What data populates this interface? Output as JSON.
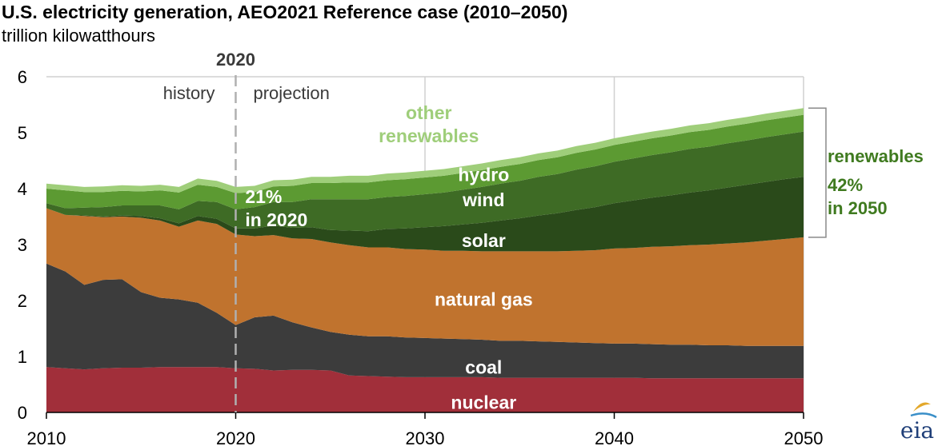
{
  "title": "U.S. electricity generation, AEO2021 Reference case (2010–2050)",
  "subtitle": "trillion kilowatthours",
  "chart_data": {
    "type": "area",
    "stacked": true,
    "x": [
      2010,
      2011,
      2012,
      2013,
      2014,
      2015,
      2016,
      2017,
      2018,
      2019,
      2020,
      2021,
      2022,
      2023,
      2024,
      2025,
      2026,
      2027,
      2028,
      2029,
      2030,
      2031,
      2032,
      2033,
      2034,
      2035,
      2036,
      2037,
      2038,
      2039,
      2040,
      2041,
      2042,
      2043,
      2044,
      2045,
      2046,
      2047,
      2048,
      2049,
      2050
    ],
    "series": [
      {
        "name": "nuclear",
        "color": "#a12f3a",
        "values": [
          0.81,
          0.79,
          0.77,
          0.79,
          0.8,
          0.8,
          0.81,
          0.81,
          0.81,
          0.81,
          0.79,
          0.78,
          0.75,
          0.76,
          0.76,
          0.75,
          0.66,
          0.65,
          0.64,
          0.63,
          0.63,
          0.63,
          0.63,
          0.63,
          0.62,
          0.62,
          0.62,
          0.62,
          0.62,
          0.62,
          0.62,
          0.62,
          0.61,
          0.61,
          0.61,
          0.61,
          0.61,
          0.61,
          0.61,
          0.61,
          0.61
        ]
      },
      {
        "name": "coal",
        "color": "#3c3c3c",
        "values": [
          1.85,
          1.73,
          1.51,
          1.58,
          1.58,
          1.35,
          1.24,
          1.21,
          1.15,
          0.97,
          0.77,
          0.92,
          0.98,
          0.85,
          0.76,
          0.69,
          0.73,
          0.71,
          0.72,
          0.71,
          0.7,
          0.69,
          0.68,
          0.67,
          0.66,
          0.66,
          0.65,
          0.64,
          0.63,
          0.62,
          0.61,
          0.61,
          0.61,
          0.6,
          0.6,
          0.59,
          0.59,
          0.58,
          0.58,
          0.58,
          0.58
        ]
      },
      {
        "name": "natural gas",
        "color": "#c0732e",
        "values": [
          0.99,
          1.01,
          1.23,
          1.12,
          1.12,
          1.33,
          1.38,
          1.3,
          1.47,
          1.59,
          1.62,
          1.45,
          1.44,
          1.5,
          1.58,
          1.6,
          1.6,
          1.59,
          1.59,
          1.58,
          1.58,
          1.57,
          1.58,
          1.58,
          1.6,
          1.6,
          1.61,
          1.62,
          1.64,
          1.66,
          1.7,
          1.71,
          1.74,
          1.76,
          1.78,
          1.8,
          1.82,
          1.85,
          1.88,
          1.91,
          1.94
        ]
      },
      {
        "name": "solar",
        "color": "#2a4a1a",
        "values": [
          0.0,
          0.0,
          0.01,
          0.01,
          0.02,
          0.03,
          0.04,
          0.06,
          0.08,
          0.09,
          0.11,
          0.14,
          0.17,
          0.19,
          0.21,
          0.22,
          0.26,
          0.29,
          0.33,
          0.37,
          0.4,
          0.44,
          0.47,
          0.51,
          0.55,
          0.59,
          0.64,
          0.68,
          0.73,
          0.77,
          0.81,
          0.85,
          0.88,
          0.91,
          0.94,
          0.97,
          1.0,
          1.03,
          1.05,
          1.07,
          1.08
        ]
      },
      {
        "name": "wind",
        "color": "#3e6b25",
        "values": [
          0.09,
          0.12,
          0.14,
          0.17,
          0.18,
          0.19,
          0.23,
          0.25,
          0.27,
          0.3,
          0.34,
          0.38,
          0.42,
          0.46,
          0.5,
          0.55,
          0.56,
          0.57,
          0.57,
          0.58,
          0.59,
          0.6,
          0.62,
          0.64,
          0.66,
          0.67,
          0.69,
          0.7,
          0.72,
          0.73,
          0.74,
          0.75,
          0.76,
          0.77,
          0.78,
          0.78,
          0.79,
          0.79,
          0.8,
          0.8,
          0.81
        ]
      },
      {
        "name": "hydro",
        "color": "#5c9a32",
        "values": [
          0.26,
          0.32,
          0.28,
          0.27,
          0.26,
          0.25,
          0.27,
          0.3,
          0.29,
          0.27,
          0.29,
          0.27,
          0.28,
          0.29,
          0.29,
          0.29,
          0.3,
          0.3,
          0.3,
          0.3,
          0.3,
          0.3,
          0.3,
          0.3,
          0.3,
          0.3,
          0.3,
          0.3,
          0.3,
          0.3,
          0.3,
          0.3,
          0.3,
          0.3,
          0.3,
          0.3,
          0.3,
          0.3,
          0.3,
          0.3,
          0.3
        ]
      },
      {
        "name": "other renewables",
        "color": "#9fce7a",
        "values": [
          0.09,
          0.09,
          0.09,
          0.1,
          0.1,
          0.1,
          0.1,
          0.1,
          0.11,
          0.11,
          0.11,
          0.11,
          0.11,
          0.11,
          0.11,
          0.11,
          0.12,
          0.12,
          0.12,
          0.12,
          0.12,
          0.12,
          0.12,
          0.12,
          0.12,
          0.12,
          0.12,
          0.12,
          0.12,
          0.12,
          0.12,
          0.12,
          0.12,
          0.12,
          0.12,
          0.12,
          0.12,
          0.12,
          0.12,
          0.12,
          0.12
        ]
      }
    ],
    "xlim": [
      2010,
      2050
    ],
    "ylim": [
      0,
      6
    ],
    "xticks": [
      "2010",
      "2020",
      "2030",
      "2040",
      "2050"
    ],
    "yticks": [
      "0",
      "1",
      "2",
      "3",
      "4",
      "5",
      "6"
    ],
    "vertical_gridlines": [
      2030,
      2040,
      2050
    ],
    "divider": {
      "x": 2020,
      "label": "2020",
      "left_label": "history",
      "right_label": "projection"
    },
    "area_labels": [
      {
        "text_lines": [
          "other",
          "renewables"
        ],
        "x": 2030.2,
        "y": 5.15,
        "color": "#9fce7a"
      },
      {
        "text_lines": [
          "hydro"
        ],
        "x": 2033.1,
        "y": 4.25,
        "color": "#ffffff"
      },
      {
        "text_lines": [
          "wind"
        ],
        "x": 2033.1,
        "y": 3.8,
        "color": "#ffffff"
      },
      {
        "text_lines": [
          "solar"
        ],
        "x": 2033.1,
        "y": 3.07,
        "color": "#ffffff"
      },
      {
        "text_lines": [
          "natural gas"
        ],
        "x": 2033.1,
        "y": 2.02,
        "color": "#ffffff"
      },
      {
        "text_lines": [
          "coal"
        ],
        "x": 2033.1,
        "y": 0.81,
        "color": "#ffffff"
      },
      {
        "text_lines": [
          "nuclear"
        ],
        "x": 2033.1,
        "y": 0.18,
        "color": "#ffffff"
      },
      {
        "text_lines": [
          "21%",
          "in 2020"
        ],
        "x": 2020.5,
        "y": 3.65,
        "color": "#ffffff"
      }
    ],
    "bracket": {
      "x": 2050,
      "y_from": 3.13,
      "y_to": 5.44,
      "label_lines": [
        "renewables",
        "42%",
        "in 2050"
      ]
    }
  },
  "logo_text": "eia"
}
